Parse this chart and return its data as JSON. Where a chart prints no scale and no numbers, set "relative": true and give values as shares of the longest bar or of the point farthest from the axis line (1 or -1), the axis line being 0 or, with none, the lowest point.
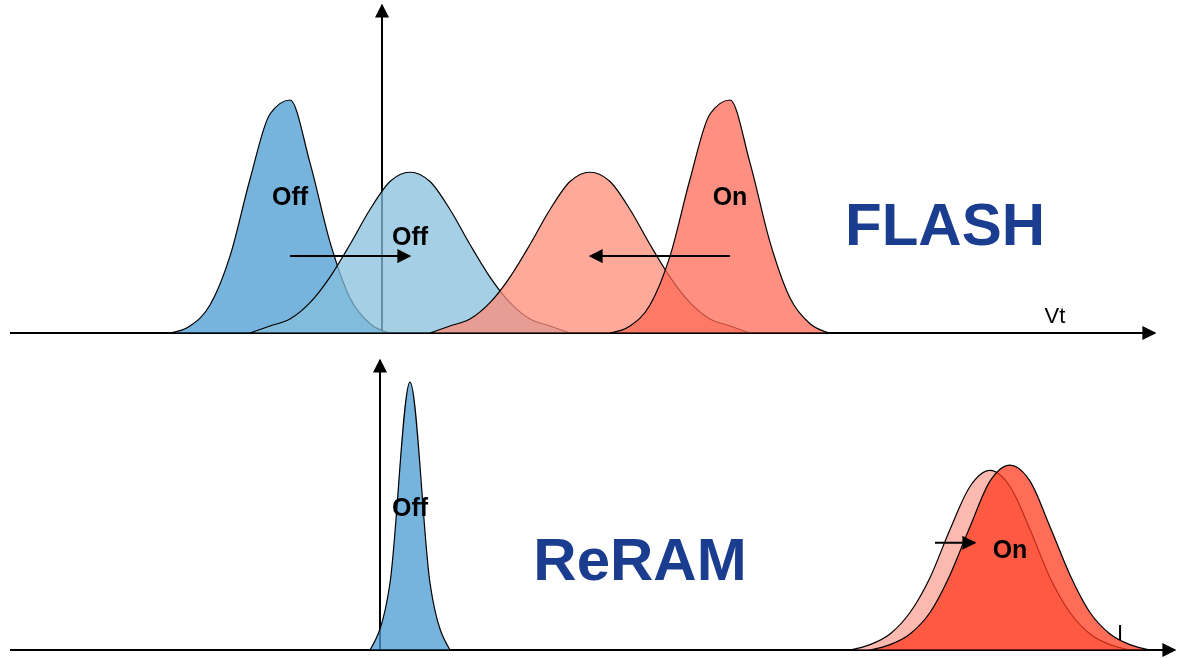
{
  "chart_data": [
    {
      "type": "area",
      "title": "FLASH",
      "xlabel": "Vt",
      "relative": true,
      "categories": [
        null,
        null,
        null,
        null,
        null,
        null,
        null,
        null,
        null,
        null,
        null,
        null,
        null,
        null,
        null,
        null,
        null,
        null,
        null,
        null,
        null,
        null,
        null,
        null,
        null,
        null,
        null,
        null,
        null,
        null,
        null,
        null,
        null,
        null,
        null,
        null,
        null,
        null,
        null,
        null,
        null,
        null,
        null,
        null,
        null,
        null,
        null,
        null,
        null,
        null,
        null,
        null,
        null,
        null,
        null,
        null,
        null
      ],
      "series": [
        {
          "name": "Off",
          "color": "#4a9bd1",
          "values": [
            null,
            null,
            null,
            null,
            null,
            null,
            null,
            null,
            0,
            0.03,
            0.12,
            0.33,
            0.66,
            0.94,
            1,
            0.73,
            0.39,
            0.15,
            0.04,
            0,
            null,
            null,
            null,
            null,
            null,
            null,
            null,
            null,
            null,
            null,
            null,
            null,
            null,
            null,
            null,
            null,
            null,
            null,
            null,
            null,
            null,
            null,
            null,
            null,
            null,
            null,
            null,
            null,
            null,
            null,
            null,
            null,
            null,
            null,
            null,
            null,
            null
          ]
        },
        {
          "name": "Off",
          "color": "#86bfdb",
          "values": [
            null,
            null,
            null,
            null,
            null,
            null,
            null,
            null,
            null,
            null,
            null,
            null,
            0,
            0.03,
            0.06,
            0.13,
            0.24,
            0.38,
            0.53,
            0.65,
            0.69,
            0.65,
            0.53,
            0.38,
            0.24,
            0.13,
            0.06,
            0.03,
            0,
            null,
            null,
            null,
            null,
            null,
            null,
            null,
            null,
            null,
            null,
            null,
            null,
            null,
            null,
            null,
            null,
            null,
            null,
            null,
            null,
            null,
            null,
            null,
            null,
            null,
            null,
            null,
            null
          ]
        },
        {
          "color": "#ff8c7a",
          "values": [
            null,
            null,
            null,
            null,
            null,
            null,
            null,
            null,
            null,
            null,
            null,
            null,
            null,
            null,
            null,
            null,
            null,
            null,
            null,
            null,
            null,
            0,
            0.03,
            0.06,
            0.13,
            0.24,
            0.38,
            0.53,
            0.65,
            0.69,
            0.65,
            0.53,
            0.38,
            0.24,
            0.13,
            0.06,
            0.03,
            0,
            null,
            null,
            null,
            null,
            null,
            null,
            null,
            null,
            null,
            null,
            null,
            null,
            null,
            null,
            null,
            null,
            null,
            null,
            null
          ]
        },
        {
          "name": "On",
          "color": "#ff6a55",
          "values": [
            null,
            null,
            null,
            null,
            null,
            null,
            null,
            null,
            null,
            null,
            null,
            null,
            null,
            null,
            null,
            null,
            null,
            null,
            null,
            null,
            null,
            null,
            null,
            null,
            null,
            null,
            null,
            null,
            null,
            null,
            0,
            0.03,
            0.12,
            0.33,
            0.66,
            0.94,
            1,
            0.73,
            0.39,
            0.15,
            0.04,
            0,
            null,
            null,
            null,
            null,
            null,
            null,
            null,
            null,
            null,
            null,
            null,
            null,
            null,
            null,
            null
          ]
        }
      ]
    },
    {
      "type": "area",
      "title": "ReRAM",
      "xlabel": "I",
      "relative": true,
      "categories": [
        null,
        null,
        null,
        null,
        null,
        null,
        null,
        null,
        null,
        null,
        null,
        null,
        null,
        null,
        null,
        null,
        null,
        null,
        null,
        null,
        null,
        null,
        null,
        null,
        null,
        null,
        null,
        null,
        null,
        null,
        null,
        null,
        null,
        null,
        null,
        null,
        null,
        null,
        null,
        null,
        null,
        null,
        null,
        null,
        null,
        null,
        null,
        null,
        null,
        null,
        null,
        null,
        null,
        null,
        null,
        null,
        null,
        null
      ],
      "series": [
        {
          "name": "Off",
          "color": "#4a9bd1",
          "values": [
            null,
            null,
            null,
            null,
            null,
            null,
            null,
            null,
            null,
            null,
            null,
            null,
            null,
            null,
            null,
            null,
            null,
            null,
            0,
            0.25,
            1,
            0.25,
            0,
            null,
            null,
            null,
            null,
            null,
            null,
            null,
            null,
            null,
            null,
            null,
            null,
            null,
            null,
            null,
            null,
            null,
            null,
            null,
            null,
            null,
            null,
            null,
            null,
            null,
            null,
            null,
            null,
            null,
            null,
            null,
            null,
            null,
            null,
            null
          ]
        },
        {
          "color": "#f9a196",
          "values": [
            null,
            null,
            null,
            null,
            null,
            null,
            null,
            null,
            null,
            null,
            null,
            null,
            null,
            null,
            null,
            null,
            null,
            null,
            null,
            null,
            null,
            null,
            null,
            null,
            null,
            null,
            null,
            null,
            null,
            null,
            null,
            null,
            null,
            null,
            null,
            null,
            null,
            null,
            null,
            null,
            null,
            null,
            0,
            0.02,
            0.06,
            0.14,
            0.27,
            0.45,
            0.61,
            0.67,
            0.61,
            0.45,
            0.27,
            0.14,
            0.06,
            0.02,
            0,
            null
          ]
        },
        {
          "name": "On",
          "color": "#ff3b1f",
          "values": [
            null,
            null,
            null,
            null,
            null,
            null,
            null,
            null,
            null,
            null,
            null,
            null,
            null,
            null,
            null,
            null,
            null,
            null,
            null,
            null,
            null,
            null,
            null,
            null,
            null,
            null,
            null,
            null,
            null,
            null,
            null,
            null,
            null,
            null,
            null,
            null,
            null,
            null,
            null,
            null,
            null,
            null,
            null,
            0,
            0.02,
            0.06,
            0.14,
            0.28,
            0.46,
            0.63,
            0.69,
            0.63,
            0.46,
            0.28,
            0.14,
            0.06,
            0.02,
            0
          ]
        }
      ]
    }
  ]
}
